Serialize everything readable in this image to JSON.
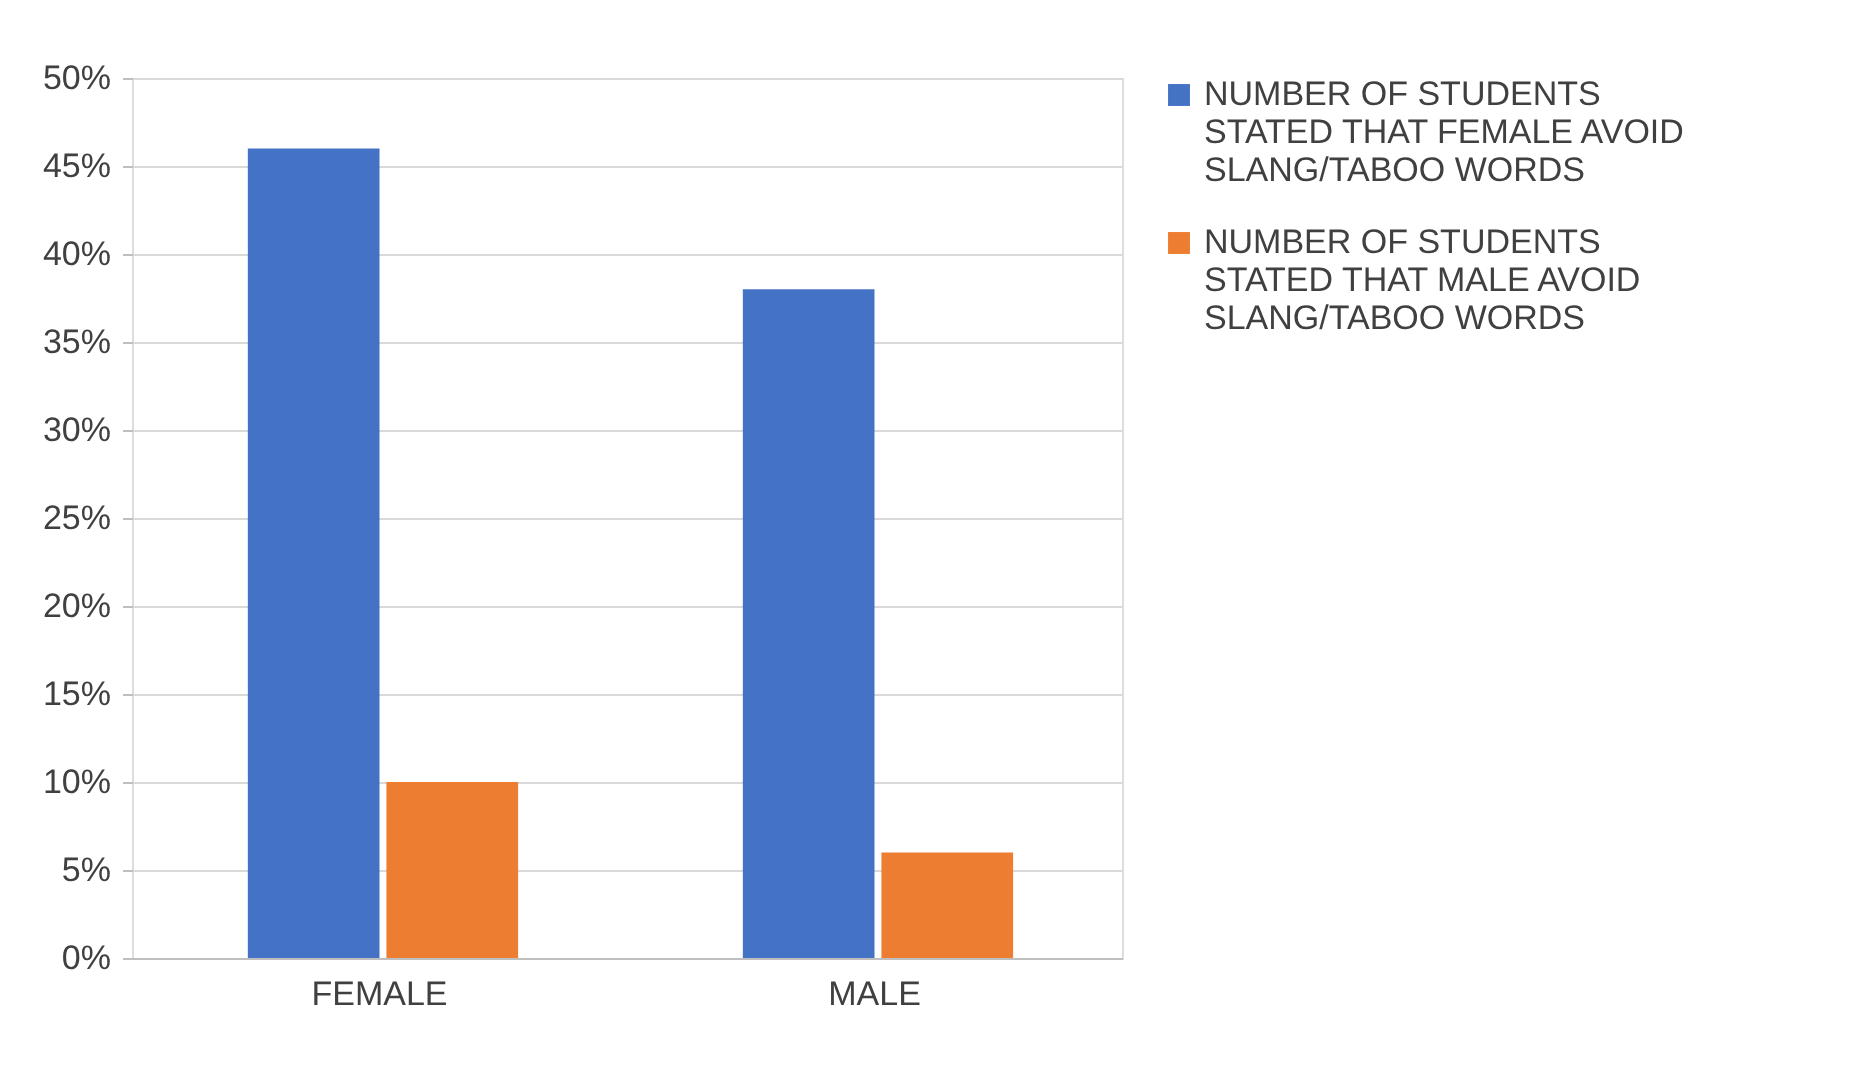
{
  "chart_data": {
    "type": "bar",
    "categories": [
      "FEMALE",
      "MALE"
    ],
    "series": [
      {
        "name": "NUMBER OF STUDENTS STATED THAT FEMALE AVOID SLANG/TABOO WORDS",
        "color": "#4472c4",
        "values": [
          46,
          38
        ]
      },
      {
        "name": "NUMBER OF STUDENTS STATED THAT MALE AVOID SLANG/TABOO WORDS",
        "color": "#ed7d31",
        "values": [
          10,
          6
        ]
      }
    ],
    "ylim": [
      0,
      50
    ],
    "yticks": [
      {
        "value": 0,
        "label": "0%"
      },
      {
        "value": 5,
        "label": "5%"
      },
      {
        "value": 10,
        "label": "10%"
      },
      {
        "value": 15,
        "label": "15%"
      },
      {
        "value": 20,
        "label": "20%"
      },
      {
        "value": 25,
        "label": "25%"
      },
      {
        "value": 30,
        "label": "30%"
      },
      {
        "value": 35,
        "label": "35%"
      },
      {
        "value": 40,
        "label": "40%"
      },
      {
        "value": 45,
        "label": "45%"
      },
      {
        "value": 50,
        "label": "50%"
      }
    ],
    "grid": "y",
    "legend": "right"
  }
}
